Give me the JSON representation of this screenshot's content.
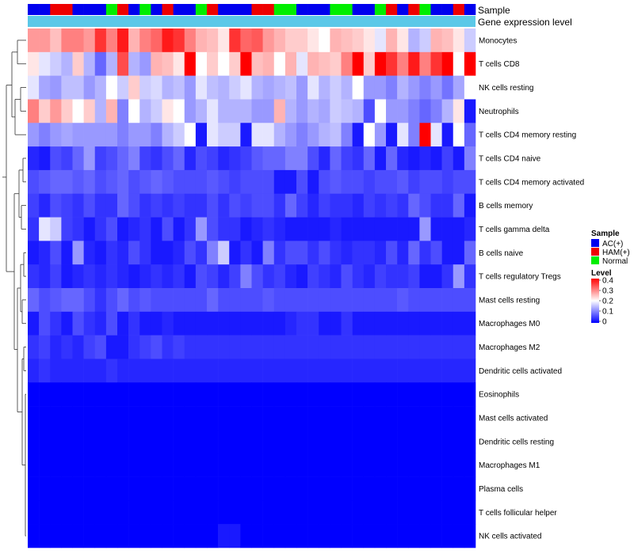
{
  "chart_data": {
    "type": "heatmap",
    "annotation_labels": [
      "Sample",
      "Gene expression level"
    ],
    "sample_groups": [
      "AC(+)",
      "AC(+)",
      "HAM(+)",
      "HAM(+)",
      "AC(+)",
      "AC(+)",
      "AC(+)",
      "Normal",
      "HAM(+)",
      "AC(+)",
      "Normal",
      "AC(+)",
      "HAM(+)",
      "AC(+)",
      "AC(+)",
      "Normal",
      "HAM(+)",
      "AC(+)",
      "AC(+)",
      "AC(+)",
      "HAM(+)",
      "HAM(+)",
      "Normal",
      "Normal",
      "AC(+)",
      "AC(+)",
      "AC(+)",
      "Normal",
      "Normal",
      "AC(+)",
      "AC(+)",
      "Normal",
      "HAM(+)",
      "AC(+)",
      "HAM(+)",
      "Normal",
      "AC(+)",
      "AC(+)",
      "HAM(+)",
      "AC(+)"
    ],
    "rows": [
      "Monocytes",
      "T cells CD8",
      "NK cells resting",
      "Neutrophils",
      "T cells CD4 memory resting",
      "T cells CD4 naive",
      "T cells CD4 memory activated",
      "B cells memory",
      "T cells gamma delta",
      "B cells naive",
      "T cells regulatory  Tregs",
      "Mast cells resting",
      "Macrophages M0",
      "Macrophages M2",
      "Dendritic cells activated",
      "Eosinophils",
      "Mast cells activated",
      "Dendritic cells resting",
      "Macrophages M1",
      "Plasma cells",
      "T cells follicular helper",
      "NK cells activated"
    ],
    "values": [
      [
        0.28,
        0.28,
        0.25,
        0.3,
        0.3,
        0.28,
        0.36,
        0.3,
        0.38,
        0.26,
        0.3,
        0.32,
        0.38,
        0.36,
        0.3,
        0.26,
        0.25,
        0.22,
        0.36,
        0.32,
        0.33,
        0.28,
        0.26,
        0.24,
        0.24,
        0.22,
        0.2,
        0.26,
        0.25,
        0.24,
        0.22,
        0.18,
        0.26,
        0.22,
        0.14,
        0.16,
        0.26,
        0.25,
        0.22,
        0.16
      ],
      [
        0.22,
        0.18,
        0.16,
        0.14,
        0.24,
        0.14,
        0.08,
        0.14,
        0.34,
        0.14,
        0.12,
        0.26,
        0.25,
        0.22,
        0.4,
        0.2,
        0.24,
        0.2,
        0.24,
        0.4,
        0.25,
        0.26,
        0.2,
        0.26,
        0.18,
        0.26,
        0.25,
        0.24,
        0.3,
        0.4,
        0.24,
        0.42,
        0.36,
        0.3,
        0.38,
        0.3,
        0.36,
        0.4,
        0.2,
        0.4
      ],
      [
        0.18,
        0.13,
        0.12,
        0.15,
        0.15,
        0.12,
        0.14,
        0.2,
        0.16,
        0.24,
        0.16,
        0.17,
        0.14,
        0.15,
        0.12,
        0.18,
        0.15,
        0.14,
        0.16,
        0.18,
        0.14,
        0.13,
        0.14,
        0.15,
        0.12,
        0.18,
        0.14,
        0.16,
        0.14,
        0.2,
        0.12,
        0.12,
        0.1,
        0.14,
        0.12,
        0.1,
        0.12,
        0.09,
        0.13,
        0.2
      ],
      [
        0.3,
        0.24,
        0.28,
        0.24,
        0.2,
        0.24,
        0.14,
        0.26,
        0.1,
        0.2,
        0.14,
        0.16,
        0.22,
        0.2,
        0.12,
        0.14,
        0.18,
        0.14,
        0.14,
        0.14,
        0.12,
        0.12,
        0.26,
        0.14,
        0.12,
        0.14,
        0.13,
        0.16,
        0.15,
        0.14,
        0.06,
        0.2,
        0.12,
        0.12,
        0.1,
        0.08,
        0.1,
        0.14,
        0.22,
        0.02
      ],
      [
        0.12,
        0.1,
        0.12,
        0.13,
        0.12,
        0.12,
        0.12,
        0.12,
        0.1,
        0.12,
        0.12,
        0.1,
        0.14,
        0.16,
        0.2,
        0.02,
        0.18,
        0.16,
        0.16,
        0.02,
        0.18,
        0.18,
        0.14,
        0.12,
        0.1,
        0.12,
        0.14,
        0.15,
        0.1,
        0.02,
        0.2,
        0.12,
        0.02,
        0.18,
        0.1,
        0.42,
        0.18,
        0.02,
        0.2,
        0.08
      ],
      [
        0.03,
        0.02,
        0.06,
        0.05,
        0.08,
        0.12,
        0.05,
        0.06,
        0.08,
        0.1,
        0.05,
        0.04,
        0.06,
        0.08,
        0.03,
        0.06,
        0.05,
        0.03,
        0.04,
        0.05,
        0.07,
        0.08,
        0.08,
        0.1,
        0.1,
        0.06,
        0.03,
        0.08,
        0.05,
        0.04,
        0.08,
        0.02,
        0.08,
        0.03,
        0.02,
        0.03,
        0.02,
        0.05,
        0.02,
        0.1
      ],
      [
        0.06,
        0.07,
        0.08,
        0.08,
        0.07,
        0.08,
        0.06,
        0.07,
        0.08,
        0.06,
        0.07,
        0.08,
        0.07,
        0.06,
        0.06,
        0.06,
        0.07,
        0.06,
        0.05,
        0.06,
        0.06,
        0.06,
        0.02,
        0.02,
        0.06,
        0.02,
        0.06,
        0.07,
        0.06,
        0.06,
        0.05,
        0.06,
        0.06,
        0.07,
        0.05,
        0.06,
        0.06,
        0.05,
        0.06,
        0.06
      ],
      [
        0.05,
        0.03,
        0.06,
        0.05,
        0.04,
        0.06,
        0.04,
        0.04,
        0.08,
        0.06,
        0.04,
        0.05,
        0.04,
        0.05,
        0.04,
        0.04,
        0.06,
        0.04,
        0.06,
        0.05,
        0.06,
        0.06,
        0.04,
        0.08,
        0.05,
        0.03,
        0.05,
        0.04,
        0.04,
        0.03,
        0.05,
        0.04,
        0.05,
        0.04,
        0.08,
        0.06,
        0.04,
        0.04,
        0.08,
        0.02
      ],
      [
        0.04,
        0.18,
        0.16,
        0.05,
        0.04,
        0.02,
        0.04,
        0.06,
        0.02,
        0.03,
        0.04,
        0.02,
        0.06,
        0.02,
        0.04,
        0.12,
        0.06,
        0.04,
        0.04,
        0.02,
        0.03,
        0.04,
        0.03,
        0.02,
        0.02,
        0.02,
        0.02,
        0.03,
        0.02,
        0.02,
        0.02,
        0.02,
        0.02,
        0.02,
        0.02,
        0.12,
        0.02,
        0.02,
        0.02,
        0.03
      ],
      [
        0.02,
        0.03,
        0.06,
        0.02,
        0.12,
        0.03,
        0.02,
        0.04,
        0.03,
        0.06,
        0.04,
        0.02,
        0.02,
        0.03,
        0.06,
        0.04,
        0.1,
        0.16,
        0.02,
        0.04,
        0.02,
        0.1,
        0.04,
        0.06,
        0.06,
        0.04,
        0.06,
        0.04,
        0.03,
        0.04,
        0.04,
        0.03,
        0.06,
        0.03,
        0.08,
        0.04,
        0.06,
        0.02,
        0.02,
        0.08
      ],
      [
        0.04,
        0.03,
        0.05,
        0.02,
        0.03,
        0.04,
        0.03,
        0.04,
        0.03,
        0.02,
        0.03,
        0.04,
        0.03,
        0.04,
        0.02,
        0.06,
        0.05,
        0.03,
        0.05,
        0.1,
        0.06,
        0.04,
        0.05,
        0.03,
        0.02,
        0.05,
        0.04,
        0.03,
        0.06,
        0.04,
        0.03,
        0.05,
        0.04,
        0.04,
        0.05,
        0.02,
        0.02,
        0.04,
        0.12,
        0.04
      ],
      [
        0.08,
        0.06,
        0.07,
        0.08,
        0.08,
        0.06,
        0.04,
        0.06,
        0.08,
        0.06,
        0.07,
        0.06,
        0.06,
        0.06,
        0.06,
        0.06,
        0.08,
        0.06,
        0.06,
        0.06,
        0.06,
        0.07,
        0.06,
        0.06,
        0.06,
        0.06,
        0.06,
        0.06,
        0.06,
        0.06,
        0.06,
        0.06,
        0.06,
        0.07,
        0.06,
        0.06,
        0.06,
        0.06,
        0.06,
        0.06
      ],
      [
        0.02,
        0.06,
        0.04,
        0.02,
        0.06,
        0.04,
        0.03,
        0.06,
        0.02,
        0.04,
        0.02,
        0.02,
        0.03,
        0.02,
        0.02,
        0.02,
        0.02,
        0.02,
        0.02,
        0.02,
        0.02,
        0.02,
        0.02,
        0.03,
        0.04,
        0.04,
        0.02,
        0.02,
        0.04,
        0.02,
        0.02,
        0.02,
        0.02,
        0.02,
        0.02,
        0.02,
        0.02,
        0.02,
        0.02,
        0.02
      ],
      [
        0.04,
        0.05,
        0.03,
        0.04,
        0.03,
        0.05,
        0.06,
        0.02,
        0.02,
        0.04,
        0.05,
        0.06,
        0.04,
        0.05,
        0.04,
        0.04,
        0.04,
        0.04,
        0.04,
        0.04,
        0.04,
        0.04,
        0.04,
        0.04,
        0.04,
        0.04,
        0.04,
        0.04,
        0.04,
        0.04,
        0.04,
        0.04,
        0.04,
        0.04,
        0.04,
        0.04,
        0.04,
        0.04,
        0.04,
        0.04
      ],
      [
        0.03,
        0.04,
        0.03,
        0.03,
        0.03,
        0.03,
        0.03,
        0.04,
        0.03,
        0.03,
        0.03,
        0.03,
        0.03,
        0.03,
        0.03,
        0.03,
        0.03,
        0.03,
        0.03,
        0.03,
        0.03,
        0.03,
        0.03,
        0.03,
        0.03,
        0.03,
        0.03,
        0.03,
        0.03,
        0.03,
        0.03,
        0.03,
        0.03,
        0.03,
        0.03,
        0.03,
        0.03,
        0.03,
        0.03,
        0.03
      ],
      [
        0.0,
        0.0,
        0.0,
        0.0,
        0.0,
        0.0,
        0.0,
        0.0,
        0.0,
        0.0,
        0.0,
        0.0,
        0.0,
        0.0,
        0.0,
        0.0,
        0.0,
        0.0,
        0.0,
        0.0,
        0.0,
        0.0,
        0.0,
        0.0,
        0.0,
        0.0,
        0.0,
        0.0,
        0.0,
        0.0,
        0.0,
        0.0,
        0.0,
        0.0,
        0.0,
        0.0,
        0.0,
        0.0,
        0.0,
        0.0
      ],
      [
        0.0,
        0.0,
        0.0,
        0.0,
        0.0,
        0.0,
        0.0,
        0.0,
        0.0,
        0.0,
        0.0,
        0.0,
        0.0,
        0.0,
        0.0,
        0.0,
        0.0,
        0.0,
        0.0,
        0.0,
        0.0,
        0.0,
        0.0,
        0.0,
        0.0,
        0.0,
        0.0,
        0.0,
        0.0,
        0.0,
        0.0,
        0.0,
        0.0,
        0.0,
        0.0,
        0.0,
        0.0,
        0.0,
        0.0,
        0.0
      ],
      [
        0.0,
        0.0,
        0.0,
        0.0,
        0.0,
        0.0,
        0.0,
        0.0,
        0.0,
        0.0,
        0.0,
        0.0,
        0.0,
        0.0,
        0.0,
        0.0,
        0.0,
        0.0,
        0.0,
        0.0,
        0.0,
        0.0,
        0.0,
        0.0,
        0.0,
        0.0,
        0.0,
        0.0,
        0.0,
        0.0,
        0.0,
        0.0,
        0.0,
        0.0,
        0.0,
        0.0,
        0.0,
        0.0,
        0.0,
        0.0
      ],
      [
        0.0,
        0.0,
        0.0,
        0.0,
        0.0,
        0.0,
        0.0,
        0.0,
        0.0,
        0.0,
        0.0,
        0.0,
        0.0,
        0.0,
        0.0,
        0.0,
        0.0,
        0.0,
        0.0,
        0.0,
        0.0,
        0.0,
        0.0,
        0.0,
        0.0,
        0.0,
        0.0,
        0.0,
        0.0,
        0.0,
        0.0,
        0.0,
        0.0,
        0.0,
        0.0,
        0.0,
        0.0,
        0.0,
        0.0,
        0.0
      ],
      [
        0.0,
        0.0,
        0.0,
        0.0,
        0.0,
        0.0,
        0.0,
        0.0,
        0.0,
        0.0,
        0.0,
        0.0,
        0.0,
        0.0,
        0.0,
        0.0,
        0.0,
        0.0,
        0.0,
        0.0,
        0.0,
        0.0,
        0.0,
        0.0,
        0.0,
        0.0,
        0.0,
        0.0,
        0.0,
        0.0,
        0.0,
        0.0,
        0.0,
        0.0,
        0.0,
        0.0,
        0.0,
        0.0,
        0.0,
        0.0
      ],
      [
        0.0,
        0.0,
        0.0,
        0.0,
        0.0,
        0.0,
        0.0,
        0.0,
        0.0,
        0.0,
        0.0,
        0.0,
        0.0,
        0.0,
        0.0,
        0.0,
        0.0,
        0.0,
        0.0,
        0.0,
        0.0,
        0.0,
        0.0,
        0.0,
        0.0,
        0.0,
        0.0,
        0.0,
        0.0,
        0.0,
        0.0,
        0.0,
        0.0,
        0.0,
        0.0,
        0.0,
        0.0,
        0.0,
        0.0,
        0.0
      ],
      [
        0.0,
        0.0,
        0.0,
        0.0,
        0.0,
        0.0,
        0.0,
        0.0,
        0.0,
        0.0,
        0.0,
        0.0,
        0.0,
        0.0,
        0.0,
        0.0,
        0.0,
        0.02,
        0.02,
        0.0,
        0.0,
        0.0,
        0.0,
        0.0,
        0.0,
        0.0,
        0.0,
        0.0,
        0.0,
        0.0,
        0.0,
        0.0,
        0.0,
        0.0,
        0.0,
        0.0,
        0.0,
        0.0,
        0.0,
        0.0
      ]
    ],
    "color_scale": {
      "low": "#0000ff",
      "mid": "#ffffff",
      "high": "#ff0000",
      "min": 0,
      "mid_value": 0.2,
      "max": 0.4
    },
    "legend": {
      "sample_title": "Sample",
      "sample_entries": [
        {
          "label": "AC(+)",
          "color": "#0000ee"
        },
        {
          "label": "HAM(+)",
          "color": "#ee0000"
        },
        {
          "label": "Normal",
          "color": "#00ee00"
        }
      ],
      "level_title": "Level",
      "level_ticks": [
        "0.4",
        "0.3",
        "0.2",
        "0.1",
        "0"
      ],
      "placement": "right"
    },
    "expression_bar_color": "#5bc8e8"
  }
}
